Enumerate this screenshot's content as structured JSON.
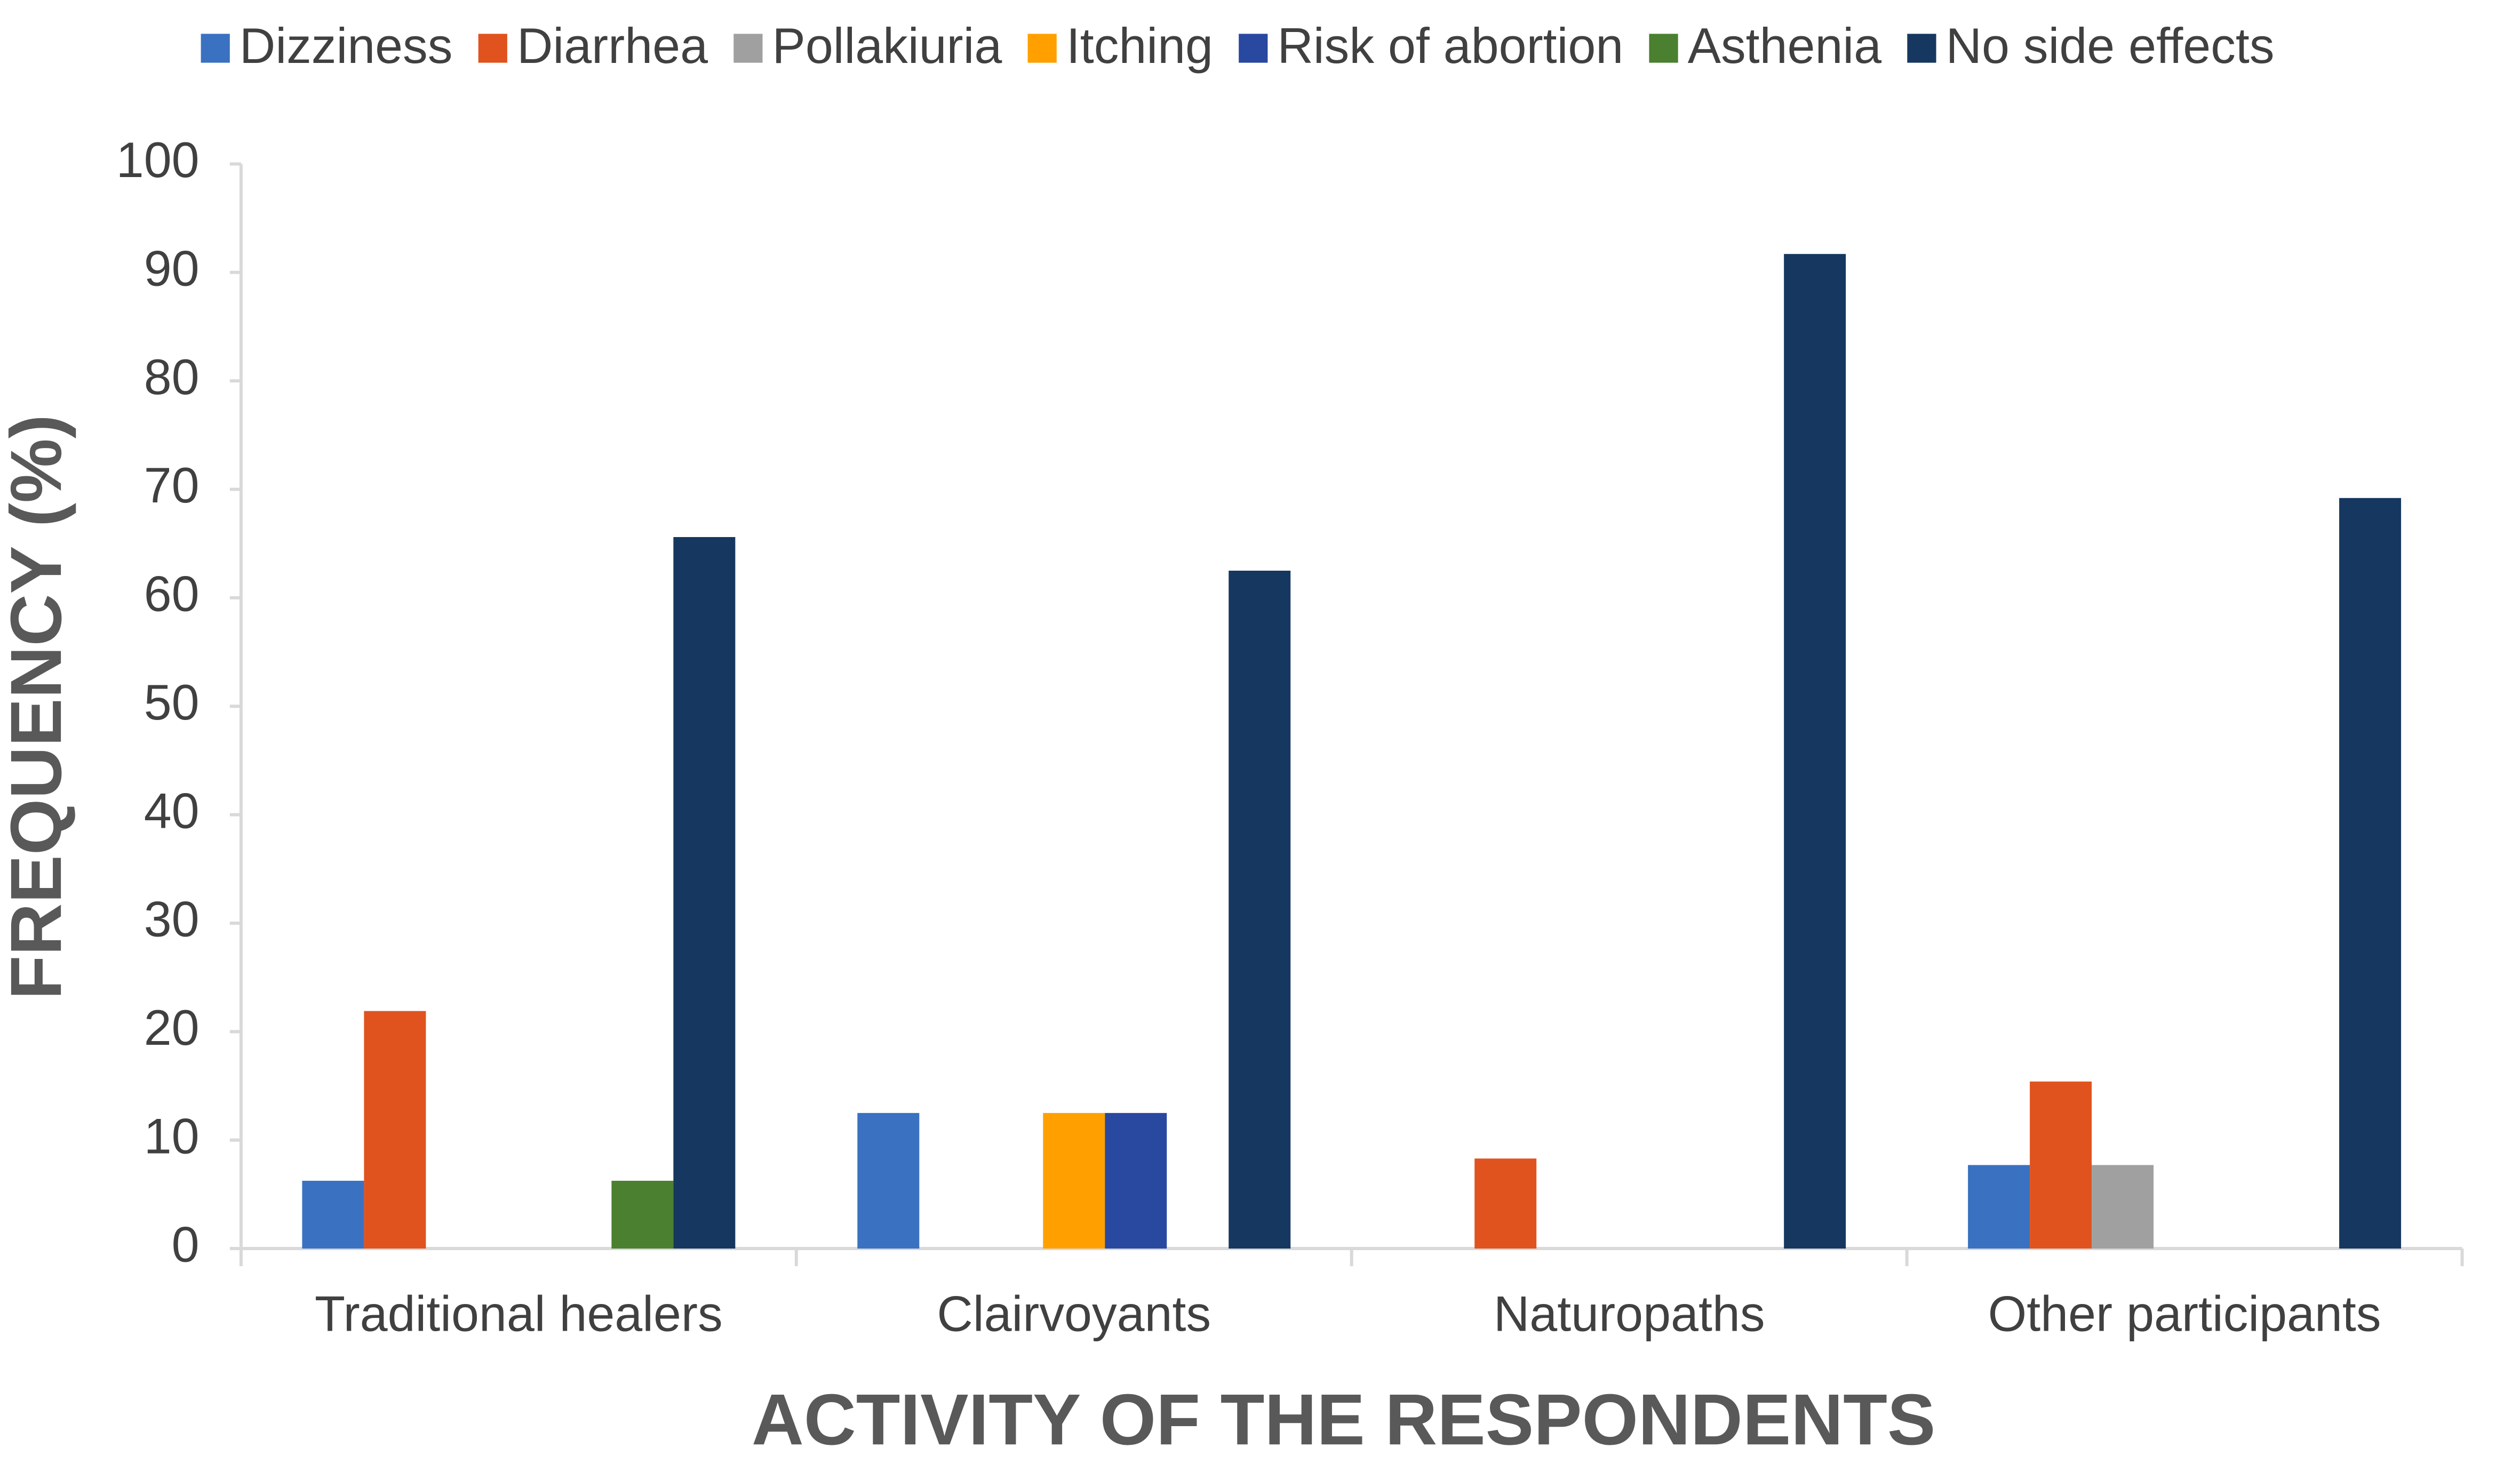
{
  "chart_data": {
    "type": "bar",
    "xlabel": "ACTIVITY OF THE RESPONDENTS",
    "ylabel": "FREQUENCY (%)",
    "categories": [
      "Traditional healers",
      "Clairvoyants",
      "Naturopaths",
      "Other participants"
    ],
    "series": [
      {
        "name": "Dizziness",
        "color": "#3a71c1",
        "values": [
          6.25,
          12.5,
          0,
          7.7
        ]
      },
      {
        "name": "Diarrhea",
        "color": "#e0531e",
        "values": [
          21.9,
          0,
          8.3,
          15.4
        ]
      },
      {
        "name": "Pollakiuria",
        "color": "#a0a0a0",
        "values": [
          0,
          0,
          0,
          7.7
        ]
      },
      {
        "name": "Itching",
        "color": "#ffa000",
        "values": [
          0,
          12.5,
          0,
          0
        ]
      },
      {
        "name": "Risk of abortion",
        "color": "#2948a0",
        "values": [
          0,
          12.5,
          0,
          0
        ]
      },
      {
        "name": "Asthenia",
        "color": "#4a8030",
        "values": [
          6.25,
          0,
          0,
          0
        ]
      },
      {
        "name": "No side effects",
        "color": "#16375f",
        "values": [
          65.6,
          62.5,
          91.7,
          69.2
        ]
      }
    ],
    "ylim": [
      0,
      100
    ],
    "yticks": [
      0,
      10,
      20,
      30,
      40,
      50,
      60,
      70,
      80,
      90,
      100
    ],
    "legend": "top"
  }
}
